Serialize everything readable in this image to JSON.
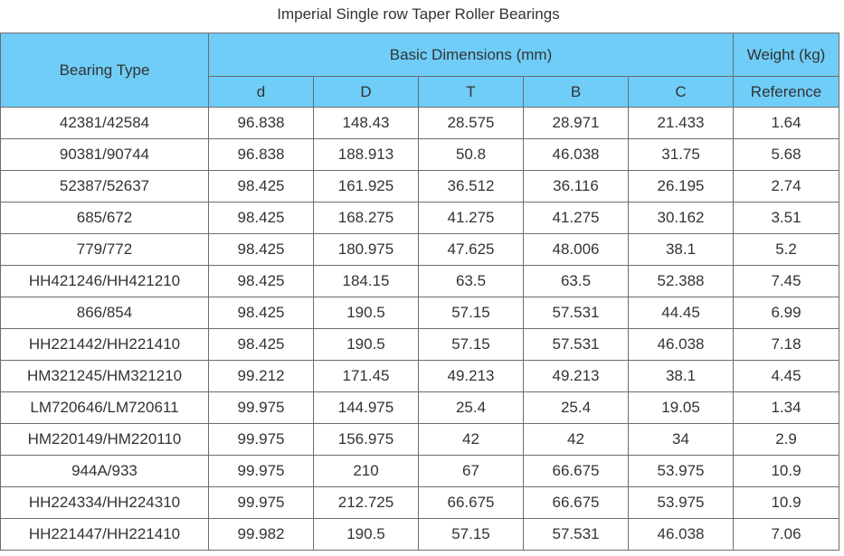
{
  "title": "Imperial Single row Taper Roller Bearings",
  "header": {
    "bearing_type": "Bearing Type",
    "basic_dimensions": "Basic Dimensions (mm)",
    "weight": "Weight (kg)",
    "columns": [
      "d",
      "D",
      "T",
      "B",
      "C"
    ],
    "reference": "Reference"
  },
  "rows": [
    [
      "42381/42584",
      "96.838",
      "148.43",
      "28.575",
      "28.971",
      "21.433",
      "1.64"
    ],
    [
      "90381/90744",
      "96.838",
      "188.913",
      "50.8",
      "46.038",
      "31.75",
      "5.68"
    ],
    [
      "52387/52637",
      "98.425",
      "161.925",
      "36.512",
      "36.116",
      "26.195",
      "2.74"
    ],
    [
      "685/672",
      "98.425",
      "168.275",
      "41.275",
      "41.275",
      "30.162",
      "3.51"
    ],
    [
      "779/772",
      "98.425",
      "180.975",
      "47.625",
      "48.006",
      "38.1",
      "5.2"
    ],
    [
      "HH421246/HH421210",
      "98.425",
      "184.15",
      "63.5",
      "63.5",
      "52.388",
      "7.45"
    ],
    [
      "866/854",
      "98.425",
      "190.5",
      "57.15",
      "57.531",
      "44.45",
      "6.99"
    ],
    [
      "HH221442/HH221410",
      "98.425",
      "190.5",
      "57.15",
      "57.531",
      "46.038",
      "7.18"
    ],
    [
      "HM321245/HM321210",
      "99.212",
      "171.45",
      "49.213",
      "49.213",
      "38.1",
      "4.45"
    ],
    [
      "LM720646/LM720611",
      "99.975",
      "144.975",
      "25.4",
      "25.4",
      "19.05",
      "1.34"
    ],
    [
      "HM220149/HM220110",
      "99.975",
      "156.975",
      "42",
      "42",
      "34",
      "2.9"
    ],
    [
      "944A/933",
      "99.975",
      "210",
      "67",
      "66.675",
      "53.975",
      "10.9"
    ],
    [
      "HH224334/HH224310",
      "99.975",
      "212.725",
      "66.675",
      "66.675",
      "53.975",
      "10.9"
    ],
    [
      "HH221447/HH221410",
      "99.982",
      "190.5",
      "57.15",
      "57.531",
      "46.038",
      "7.06"
    ]
  ]
}
